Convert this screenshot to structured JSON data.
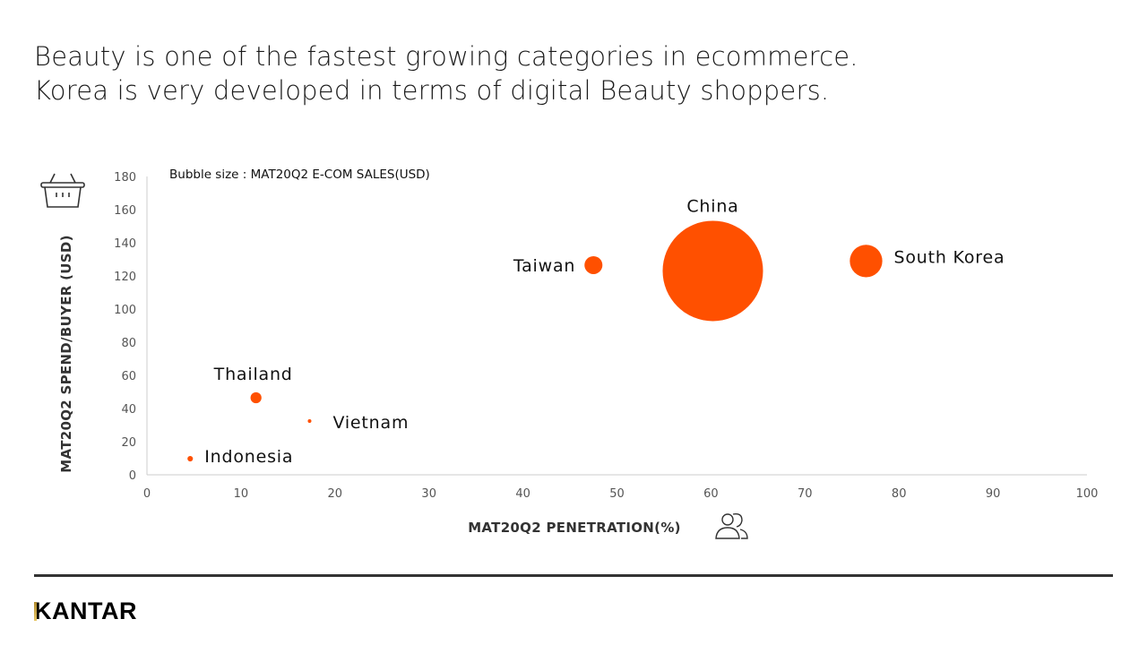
{
  "title": {
    "line1": "Beauty is one of the fastest growing categories in ecommerce.",
    "line2": "Korea is very developed in terms of digital Beauty shoppers."
  },
  "chart_data": {
    "type": "scatter",
    "subtype": "bubble",
    "note": "Bubble size : MAT20Q2 E-COM SALES(USD)",
    "xlabel": "MAT20Q2 PENETRATION(%)",
    "ylabel": "MAT20Q2 SPEND/BUYER (USD)",
    "xlim": [
      0,
      100
    ],
    "ylim": [
      0,
      180
    ],
    "xticks": [
      "0",
      "10",
      "20",
      "30",
      "40",
      "50",
      "60",
      "70",
      "80",
      "90",
      "100"
    ],
    "yticks": [
      "0",
      "20",
      "40",
      "60",
      "80",
      "100",
      "120",
      "140",
      "160",
      "180"
    ],
    "grid": false,
    "color": "#FF5000",
    "points": [
      {
        "name": "China",
        "x": 60.2,
        "y": 123,
        "size": 100
      },
      {
        "name": "South Korea",
        "x": 76.5,
        "y": 129,
        "size": 10.5
      },
      {
        "name": "Taiwan",
        "x": 47.5,
        "y": 126.5,
        "size": 3.2
      },
      {
        "name": "Thailand",
        "x": 11.6,
        "y": 46.5,
        "size": 1.2
      },
      {
        "name": "Vietnam",
        "x": 17.3,
        "y": 32.4,
        "size": 0.13
      },
      {
        "name": "Indonesia",
        "x": 4.6,
        "y": 9.7,
        "size": 0.3
      }
    ]
  },
  "icons": {
    "y_axis": "shopping-basket-icon",
    "x_axis": "people-icon"
  },
  "footer": {
    "logo": "KANTAR"
  }
}
